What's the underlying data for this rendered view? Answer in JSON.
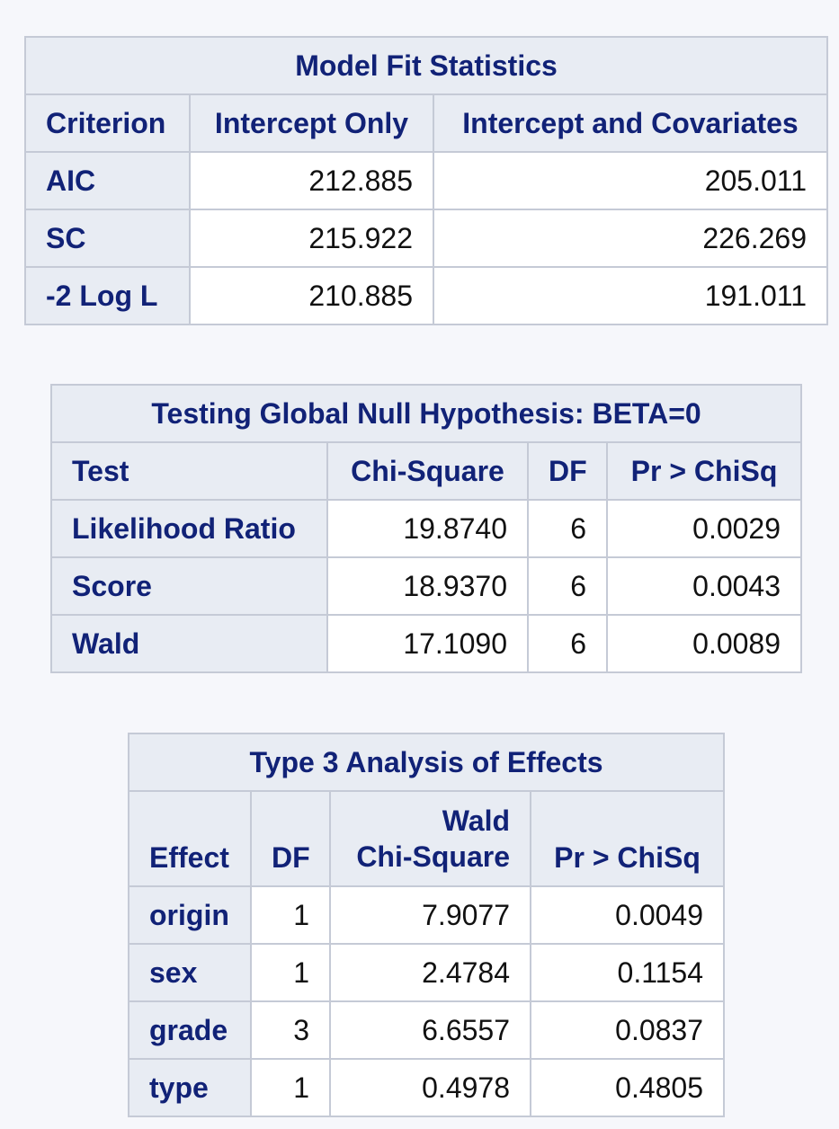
{
  "model_fit": {
    "title": "Model Fit Statistics",
    "headers": [
      "Criterion",
      "Intercept Only",
      "Intercept and Covariates"
    ],
    "rows": [
      {
        "criterion": "AIC",
        "intercept_only": "212.885",
        "intercept_covariates": "205.011"
      },
      {
        "criterion": "SC",
        "intercept_only": "215.922",
        "intercept_covariates": "226.269"
      },
      {
        "criterion": "-2 Log L",
        "intercept_only": "210.885",
        "intercept_covariates": "191.011"
      }
    ]
  },
  "global_null": {
    "title": "Testing Global Null Hypothesis: BETA=0",
    "headers": [
      "Test",
      "Chi-Square",
      "DF",
      "Pr > ChiSq"
    ],
    "rows": [
      {
        "test": "Likelihood Ratio",
        "chisq": "19.8740",
        "df": "6",
        "p": "0.0029"
      },
      {
        "test": "Score",
        "chisq": "18.9370",
        "df": "6",
        "p": "0.0043"
      },
      {
        "test": "Wald",
        "chisq": "17.1090",
        "df": "6",
        "p": "0.0089"
      }
    ]
  },
  "type3": {
    "title": "Type 3 Analysis of Effects",
    "headers": {
      "effect": "Effect",
      "df": "DF",
      "wald_line1": "Wald",
      "wald_line2": "Chi-Square",
      "p": "Pr > ChiSq"
    },
    "rows": [
      {
        "effect": "origin",
        "df": "1",
        "chisq": "7.9077",
        "p": "0.0049"
      },
      {
        "effect": "sex",
        "df": "1",
        "chisq": "2.4784",
        "p": "0.1154"
      },
      {
        "effect": "grade",
        "df": "3",
        "chisq": "6.6557",
        "p": "0.0837"
      },
      {
        "effect": "type",
        "df": "1",
        "chisq": "0.4978",
        "p": "0.4805"
      }
    ]
  },
  "colors": {
    "header_bg": "#e8ecf3",
    "header_text": "#112277",
    "border": "#c5cad6",
    "page_bg": "#f6f7fb"
  }
}
